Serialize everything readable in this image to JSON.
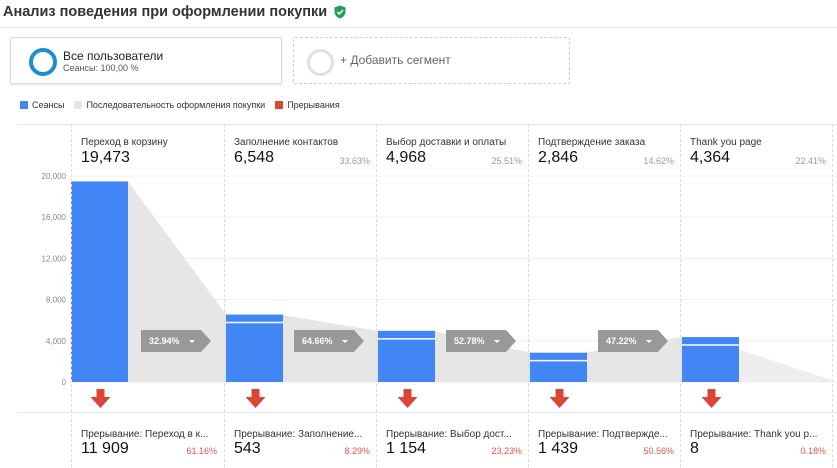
{
  "report": {
    "title": "Анализ поведения при оформлении покупки"
  },
  "segments": {
    "active_name": "Все пользователи",
    "active_sub": "Сеансы: 100,00 %",
    "add_label": "+ Добавить сегмент"
  },
  "legend": {
    "items": [
      {
        "label": "Сеансы",
        "color": "#4285f4"
      },
      {
        "label": "Последовательность оформления покупки",
        "color": "#e6e6e6"
      },
      {
        "label": "Прерывания",
        "color": "#db4437"
      }
    ]
  },
  "chart_data": {
    "type": "bar",
    "y_ticks": [
      "20,000",
      "16,000",
      "12,000",
      "8,000",
      "4,000",
      "0"
    ],
    "ylim": [
      0,
      20000
    ],
    "stages": [
      {
        "name": "Переход в корзину",
        "value": 19473,
        "value_label": "19,473",
        "pct": "",
        "progression": "32.94%",
        "drop_name": "Прерывание: Переход в к...",
        "drop_value": "11 909",
        "drop_pct": "61.16%"
      },
      {
        "name": "Заполнение контактов",
        "value": 6548,
        "value_label": "6,548",
        "pct": "33.63%",
        "progression": "64.66%",
        "drop_name": "Прерывание: Заполнение...",
        "drop_value": "543",
        "drop_pct": "8.29%"
      },
      {
        "name": "Выбор доставки и оплаты",
        "value": 4968,
        "value_label": "4,968",
        "pct": "25.51%",
        "progression": "52.78%",
        "drop_name": "Прерывание: Выбор дост...",
        "drop_value": "1 154",
        "drop_pct": "23.23%"
      },
      {
        "name": "Подтверждение заказа",
        "value": 2846,
        "value_label": "2,846",
        "pct": "14.62%",
        "progression": "47.22%",
        "drop_name": "Прерывание: Подтвержде...",
        "drop_value": "1 439",
        "drop_pct": "50.56%"
      },
      {
        "name": "Thank you page",
        "value": 4364,
        "value_label": "4,364",
        "pct": "22.41%",
        "progression": "",
        "drop_name": "Прерывание: Thank you p...",
        "drop_value": "8",
        "drop_pct": "0.18%"
      }
    ]
  }
}
